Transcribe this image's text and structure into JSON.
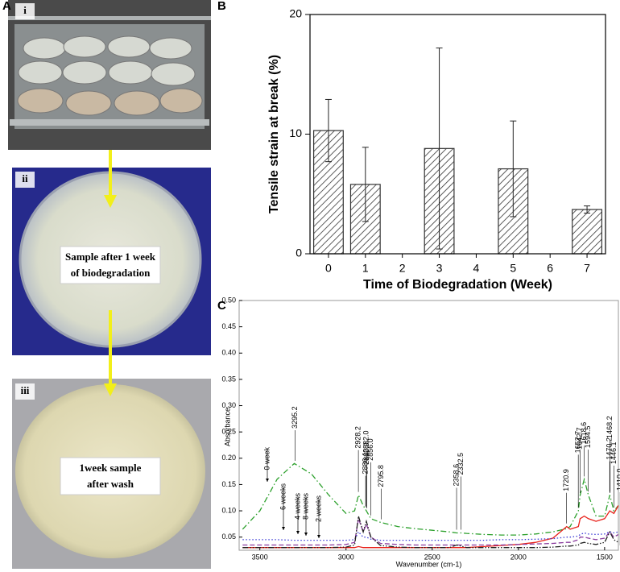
{
  "figure": {
    "panel_labels": [
      "A",
      "B",
      "C"
    ],
    "photos": [
      {
        "label": "i"
      },
      {
        "label": "ii",
        "caption": [
          "Sample after 1 week",
          "of biodegradation"
        ]
      },
      {
        "label": "iii",
        "caption": [
          "1week sample",
          "after wash"
        ]
      }
    ]
  },
  "chart_data": [
    {
      "type": "bar",
      "x_label": "Time of Biodegradation (Week)",
      "y_label": "Tensile strain at break (%)",
      "categories": [
        "0",
        "1",
        "2",
        "3",
        "4",
        "5",
        "6",
        "7"
      ],
      "values": [
        10.3,
        5.8,
        null,
        8.8,
        null,
        7.1,
        null,
        3.7
      ],
      "errors": [
        2.6,
        3.1,
        null,
        8.4,
        null,
        4.0,
        null,
        0.3
      ],
      "color": "#333333",
      "ylim": [
        0,
        20
      ],
      "yticks": [
        0,
        10,
        20
      ]
    },
    {
      "type": "line",
      "x_label": "Wavenumber (cm-1)",
      "y_label": "Absorbance",
      "x": [
        3600,
        3500,
        3400,
        3300,
        3200,
        3100,
        3000,
        2950,
        2928,
        2900,
        2882,
        2856,
        2800,
        2700,
        2600,
        2500,
        2400,
        2358,
        2332,
        2300,
        2200,
        2100,
        2000,
        1900,
        1800,
        1720,
        1700,
        1652,
        1642,
        1618,
        1594,
        1550,
        1500,
        1470,
        1446,
        1420
      ],
      "xlim": [
        3620,
        1420
      ],
      "xticks": [
        3500,
        3000,
        2500,
        2000,
        1500
      ],
      "ylim": [
        0.025,
        0.5
      ],
      "yticks": [
        0.05,
        {
          "value": 0.1,
          "label": "0.10"
        },
        0.15,
        {
          "value": 0.2,
          "label": "0.20"
        },
        0.25,
        {
          "value": 0.3,
          "label": "0.30"
        },
        0.35,
        {
          "value": 0.4,
          "label": "0.40"
        },
        0.45,
        {
          "value": 0.5,
          "label": "0.50"
        }
      ],
      "series": [
        {
          "name": "0 week",
          "color": "#2ca02c",
          "line_style": "dash-dot",
          "values": [
            0.065,
            0.1,
            0.16,
            0.19,
            0.17,
            0.13,
            0.095,
            0.1,
            0.13,
            0.11,
            0.1,
            0.085,
            0.078,
            0.07,
            0.066,
            0.063,
            0.06,
            0.058,
            0.058,
            0.057,
            0.055,
            0.054,
            0.054,
            0.056,
            0.06,
            0.066,
            0.07,
            0.1,
            0.13,
            0.16,
            0.13,
            0.09,
            0.09,
            0.13,
            0.1,
            0.11
          ]
        },
        {
          "name": "6 weeks",
          "color": "#e8211a",
          "line_style": "solid",
          "values": [
            0.03,
            0.03,
            0.03,
            0.03,
            0.03,
            0.03,
            0.03,
            0.03,
            0.032,
            0.03,
            0.03,
            0.03,
            0.03,
            0.03,
            0.03,
            0.03,
            0.03,
            0.03,
            0.03,
            0.03,
            0.032,
            0.034,
            0.036,
            0.04,
            0.048,
            0.07,
            0.065,
            0.07,
            0.085,
            0.09,
            0.085,
            0.08,
            0.085,
            0.1,
            0.095,
            0.11
          ]
        },
        {
          "name": "4 weeks",
          "color": "#3b3bd6",
          "line_style": "dotted",
          "values": [
            0.045,
            0.045,
            0.045,
            0.044,
            0.044,
            0.044,
            0.044,
            0.045,
            0.06,
            0.05,
            0.05,
            0.046,
            0.044,
            0.044,
            0.044,
            0.044,
            0.044,
            0.044,
            0.044,
            0.044,
            0.044,
            0.045,
            0.045,
            0.046,
            0.047,
            0.05,
            0.05,
            0.052,
            0.055,
            0.058,
            0.056,
            0.055,
            0.056,
            0.06,
            0.058,
            0.06
          ]
        },
        {
          "name": "8 weeks",
          "color": "#8a3c9e",
          "line_style": "dashed",
          "values": [
            0.035,
            0.035,
            0.035,
            0.035,
            0.035,
            0.035,
            0.036,
            0.04,
            0.085,
            0.06,
            0.075,
            0.05,
            0.038,
            0.036,
            0.035,
            0.035,
            0.035,
            0.035,
            0.035,
            0.035,
            0.035,
            0.035,
            0.036,
            0.037,
            0.038,
            0.04,
            0.04,
            0.045,
            0.05,
            0.05,
            0.048,
            0.045,
            0.048,
            0.06,
            0.05,
            0.055
          ]
        },
        {
          "name": "2 weeks",
          "color": "#222222",
          "line_style": "dash-dot-dot",
          "values": [
            0.03,
            0.03,
            0.03,
            0.03,
            0.03,
            0.03,
            0.031,
            0.035,
            0.09,
            0.06,
            0.08,
            0.05,
            0.034,
            0.031,
            0.03,
            0.03,
            0.03,
            0.035,
            0.033,
            0.03,
            0.03,
            0.03,
            0.03,
            0.03,
            0.031,
            0.033,
            0.033,
            0.035,
            0.038,
            0.04,
            0.038,
            0.036,
            0.04,
            0.06,
            0.045,
            0.04
          ]
        }
      ],
      "peak_labels": [
        3295.2,
        2928.2,
        {
          "value": 2882,
          "label": "2882.0"
        },
        2886.1,
        {
          "value": 2880,
          "label": "2880.0"
        },
        {
          "value": 2856,
          "label": "2856.0"
        },
        2795.8,
        2358.6,
        2332.5,
        1720.9,
        1642.7,
        1652.7,
        1618.6,
        1594.5,
        1468.2,
        1470.2,
        1446.1,
        {
          "value": 1410,
          "label": "1410.0"
        }
      ]
    }
  ]
}
